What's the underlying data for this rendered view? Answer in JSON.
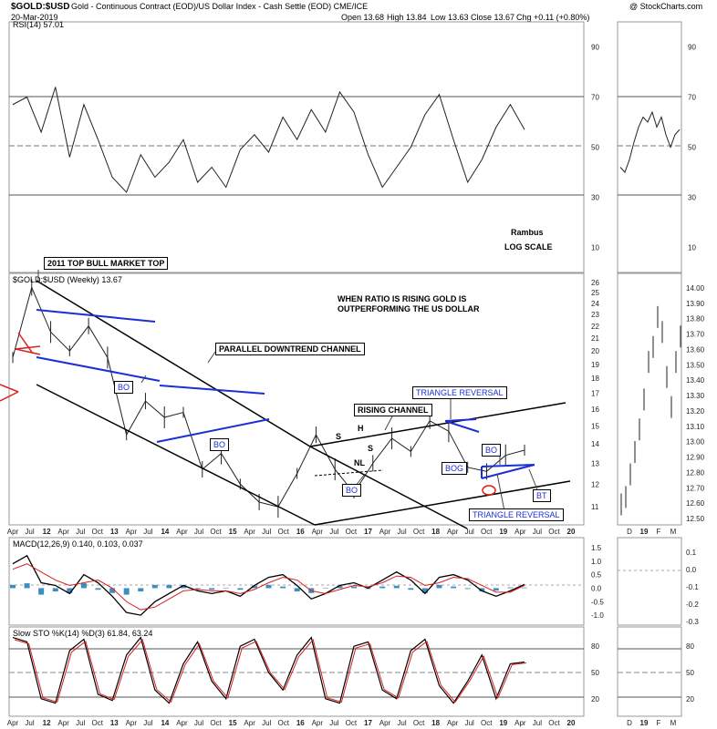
{
  "header": {
    "symbol": "$GOLD:$USD",
    "description": "Gold - Continuous Contract (EOD)/US Dollar Index - Cash Settle (EOD) CME/ICE",
    "date": "20-Mar-2019",
    "watermark": "@ StockCharts.com",
    "quote": {
      "open": "Open 13.68",
      "high": "High 13.84",
      "low": "Low 13.63",
      "close": "Close 13.67",
      "chg": "Chg +0.11 (+0.80%)"
    }
  },
  "colors": {
    "channel": "#000000",
    "triangle": "#1a2fd6",
    "label_text": "#1a2fd6",
    "red": "#d92020",
    "macd_hist": "#3a8fc0",
    "rsi_fill": "#4d7a4d"
  },
  "rsi_panel": {
    "legend": "RSI(14) 57.01",
    "ticks": [
      "90",
      "70",
      "50",
      "30",
      "10"
    ],
    "note1": "Rambus",
    "note2": "LOG SCALE"
  },
  "price_panel": {
    "legend": "$GOLD:$USD (Weekly) 13.67",
    "y_ticks": [
      "26",
      "25",
      "24",
      "23",
      "22",
      "21",
      "20",
      "19",
      "18",
      "17",
      "16",
      "15",
      "14",
      "13",
      "12",
      "11"
    ],
    "right_ticks": [
      "14.00",
      "13.90",
      "13.80",
      "13.70",
      "13.60",
      "13.50",
      "13.40",
      "13.30",
      "13.20",
      "13.10",
      "13.00",
      "12.90",
      "12.80",
      "12.70",
      "12.60",
      "12.50"
    ],
    "annotations": {
      "top": "2011 TOP BULL MARKET TOP",
      "ratio1": "WHEN RATIO IS RISING GOLD IS",
      "ratio2": "OUTPERFORMING THE US DOLLAR",
      "channel": "PARALLEL DOWNTREND CHANNEL",
      "rising": "RISING CHANNEL",
      "tri_rev_top": "TRIANGLE REVERSAL",
      "tri_rev_bottom": "TRIANGLE REVERSAL",
      "bo1": "BO",
      "bo2": "BO",
      "bo3": "BO",
      "bo4": "BO",
      "bog": "BOG",
      "bt": "BT",
      "s1": "S",
      "h": "H",
      "s2": "S",
      "nl": "NL"
    }
  },
  "macd_panel": {
    "legend": "MACD(12,26,9) 0.140, 0.103, 0.037",
    "ticks": [
      "1.5",
      "1.0",
      "0.5",
      "0.0",
      "-0.5",
      "-1.0"
    ],
    "right_ticks": [
      "0.1",
      "0.0",
      "-0.1",
      "-0.2",
      "-0.3"
    ]
  },
  "sto_panel": {
    "legend": "Slow STO %K(14) %D(3) 61.84, 63.24",
    "ticks": [
      "80",
      "50",
      "20"
    ]
  },
  "x_axis": {
    "labels": [
      "Apr",
      "Jul",
      "12",
      "Apr",
      "Jul",
      "Oct",
      "13",
      "Apr",
      "Jul",
      "14",
      "Apr",
      "Jul",
      "Oct",
      "15",
      "Apr",
      "Jul",
      "Oct",
      "16",
      "Apr",
      "Jul",
      "Oct",
      "17",
      "Apr",
      "Jul",
      "Oct",
      "18",
      "Apr",
      "Jul",
      "Oct",
      "19",
      "Apr",
      "Jul",
      "Oct",
      "20"
    ],
    "right_labels": [
      "D",
      "19",
      "F",
      "M"
    ]
  },
  "chart_data": {
    "type": "line",
    "title": "$GOLD:$USD (Weekly)",
    "ylabel": "",
    "scale": "log",
    "ylim": [
      10.3,
      26
    ],
    "series": [
      {
        "name": "$GOLD:$USD",
        "x": [
          "2011-04",
          "2011-08",
          "2011-12",
          "2012-06",
          "2012-10",
          "2013-02",
          "2013-06",
          "2013-09",
          "2014-01",
          "2014-06",
          "2014-11",
          "2015-03",
          "2015-07",
          "2015-11",
          "2016-01",
          "2016-04",
          "2016-07",
          "2016-10",
          "2016-12",
          "2017-04",
          "2017-09",
          "2017-12",
          "2018-02",
          "2018-05",
          "2018-08",
          "2018-10",
          "2019-01",
          "2019-03"
        ],
        "values": [
          19.5,
          25.5,
          21.5,
          20.0,
          22.0,
          19.5,
          14.5,
          16.5,
          15.5,
          15.8,
          12.7,
          13.5,
          12.0,
          11.2,
          11.0,
          12.5,
          14.5,
          12.7,
          11.6,
          13.0,
          14.3,
          13.6,
          15.3,
          14.7,
          12.8,
          12.6,
          13.4,
          13.67
        ]
      }
    ],
    "rsi": {
      "name": "RSI(14)",
      "values": [
        67,
        70,
        56,
        74,
        46,
        67,
        53,
        38,
        32,
        47,
        38,
        44,
        53,
        36,
        42,
        34,
        49,
        55,
        48,
        62,
        53,
        65,
        56,
        72,
        64,
        47,
        34,
        42,
        50,
        63,
        71,
        53,
        36,
        45,
        58,
        67,
        57
      ],
      "ylim": [
        0,
        100
      ]
    },
    "macd": {
      "name": "MACD(12,26,9)",
      "values": [
        0.9,
        1.2,
        0.2,
        0.1,
        -0.2,
        0.5,
        0.2,
        -0.3,
        -0.9,
        -1.0,
        -0.5,
        -0.2,
        0.1,
        -0.1,
        -0.2,
        -0.1,
        -0.3,
        0.1,
        0.4,
        0.5,
        0.1,
        -0.4,
        -0.2,
        0.1,
        0.2,
        0.0,
        0.3,
        0.6,
        0.3,
        -0.2,
        0.4,
        0.5,
        0.3,
        -0.1,
        -0.3,
        -0.1,
        0.14
      ],
      "signal": [
        0.7,
        0.9,
        0.6,
        0.3,
        0.1,
        0.2,
        0.3,
        0.0,
        -0.5,
        -0.8,
        -0.7,
        -0.4,
        -0.1,
        -0.05,
        -0.1,
        -0.1,
        -0.2,
        -0.05,
        0.2,
        0.4,
        0.3,
        -0.1,
        -0.2,
        -0.05,
        0.1,
        0.05,
        0.2,
        0.45,
        0.4,
        0.1,
        0.2,
        0.4,
        0.35,
        0.1,
        -0.15,
        -0.15,
        0.103
      ],
      "ylim": [
        -1.3,
        1.7
      ]
    },
    "sto": {
      "name": "Slow STO %K(14) %D(3)",
      "values": [
        90,
        85,
        20,
        15,
        75,
        88,
        25,
        18,
        70,
        90,
        30,
        15,
        60,
        85,
        40,
        20,
        80,
        88,
        50,
        30,
        70,
        90,
        20,
        15,
        80,
        85,
        30,
        20,
        75,
        88,
        35,
        15,
        40,
        70,
        20,
        60,
        62
      ],
      "ylim": [
        0,
        100
      ]
    }
  }
}
